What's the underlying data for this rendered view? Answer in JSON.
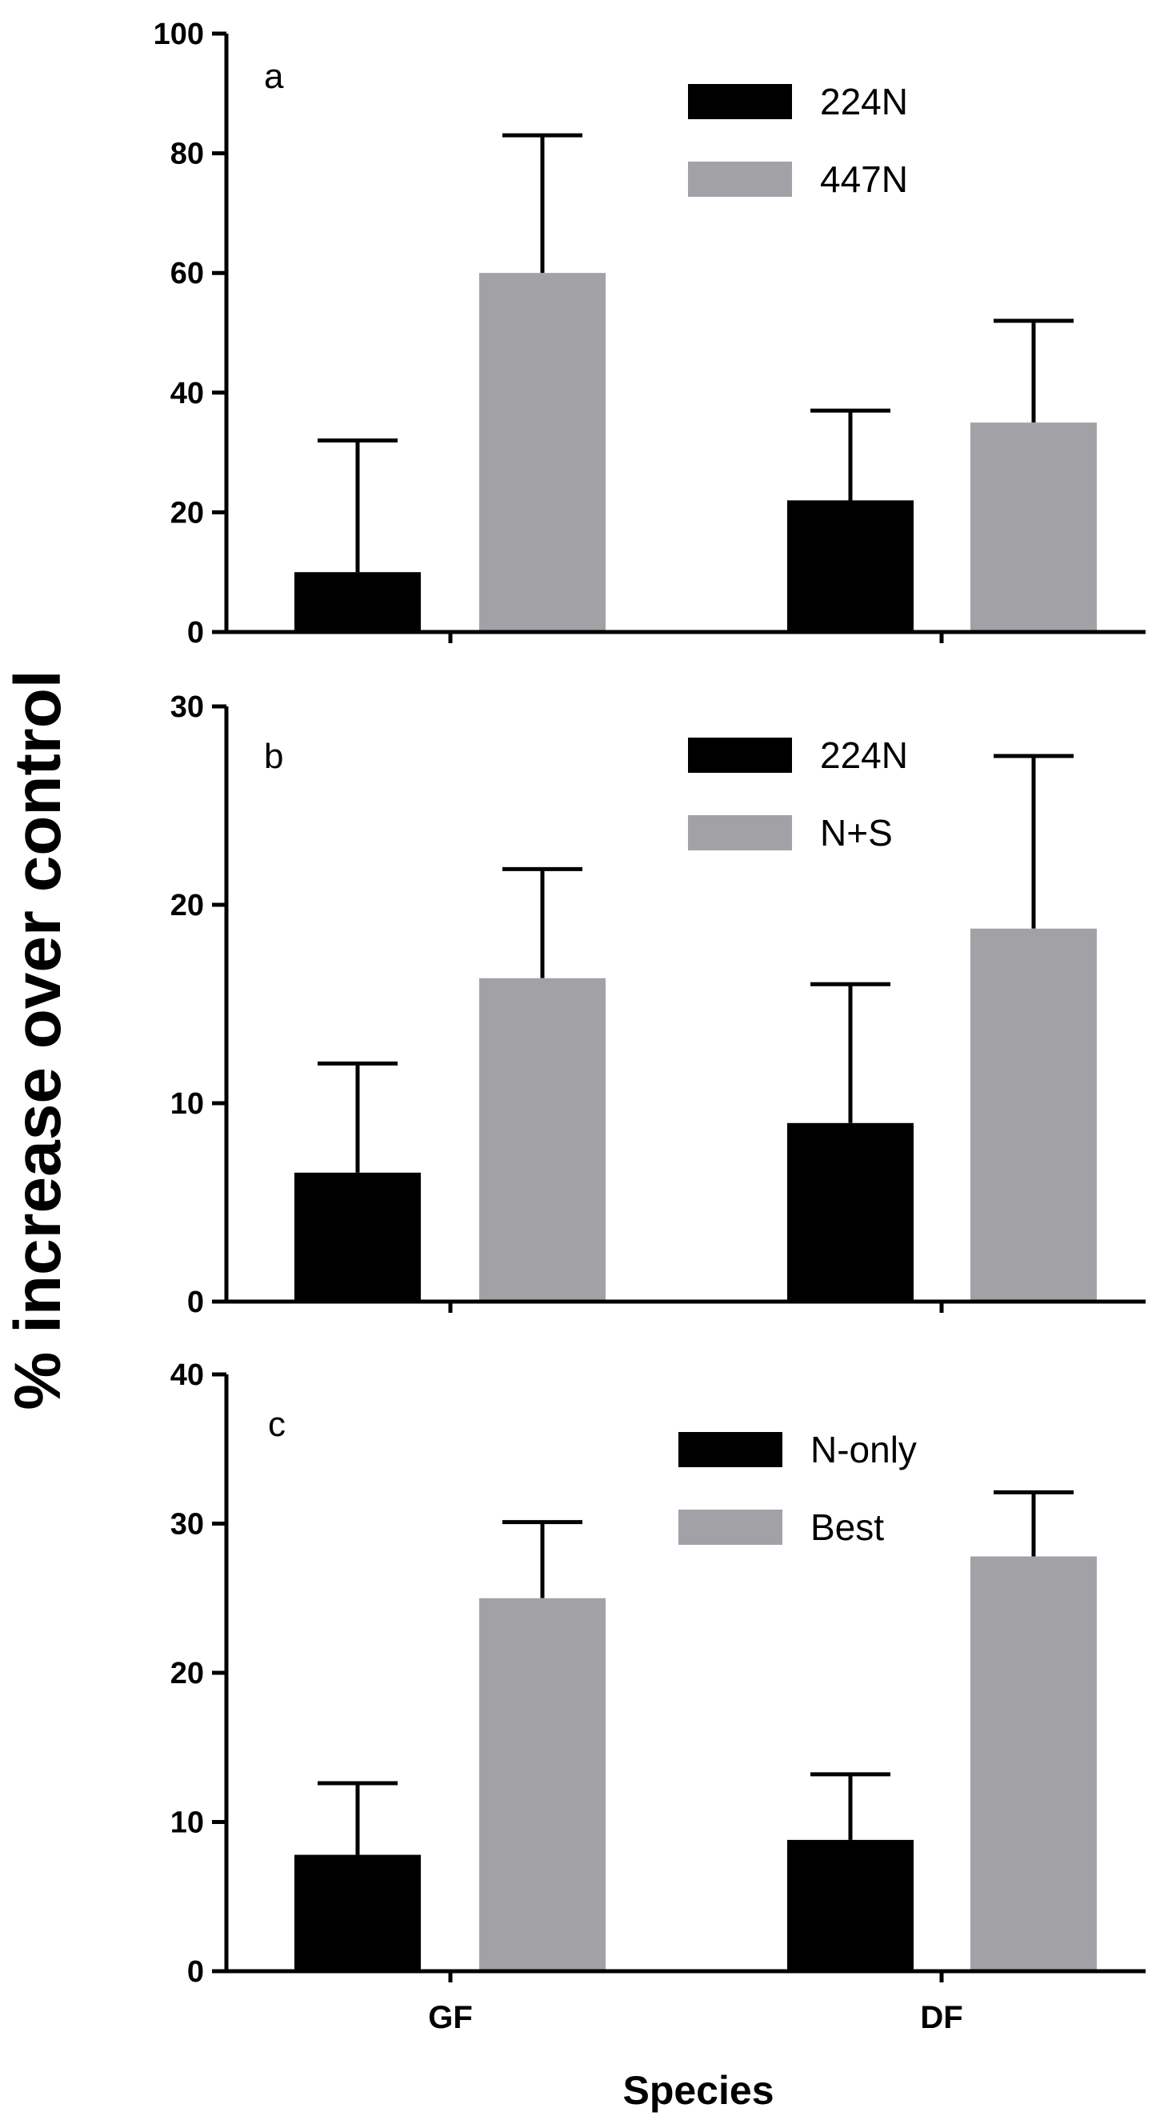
{
  "chart_data": {
    "type": "bar",
    "ylabel": "% increase over control",
    "xlabel": "Species",
    "categories": [
      "GF",
      "DF"
    ],
    "colors": {
      "dark": "#000000",
      "light": "#a2a1a6"
    },
    "panels": [
      {
        "label": "a",
        "ylim": [
          0,
          100
        ],
        "yticks": [
          0,
          20,
          40,
          60,
          80,
          100
        ],
        "yticks_text": [
          "0",
          "20",
          "40",
          "60",
          "80",
          "100"
        ],
        "series": [
          {
            "name": "224N",
            "values": [
              10,
              22
            ],
            "errors": [
              22,
              15
            ]
          },
          {
            "name": "447N",
            "values": [
              60,
              35
            ],
            "errors": [
              23,
              17
            ]
          }
        ]
      },
      {
        "label": "b",
        "ylim": [
          0,
          30
        ],
        "yticks": [
          0,
          10,
          20,
          30
        ],
        "yticks_text": [
          "0",
          "10",
          "20",
          "30"
        ],
        "series": [
          {
            "name": "224N",
            "values": [
              6.5,
              9
            ],
            "errors": [
              5.5,
              7
            ]
          },
          {
            "name": "N+S",
            "values": [
              16.3,
              18.8
            ],
            "errors": [
              5.5,
              8.7
            ]
          }
        ]
      },
      {
        "label": "c",
        "ylim": [
          0,
          40
        ],
        "yticks": [
          0,
          10,
          20,
          30,
          40
        ],
        "yticks_text": [
          "0",
          "10",
          "20",
          "30",
          "40"
        ],
        "series": [
          {
            "name": "N-only",
            "values": [
              7.8,
              8.8
            ],
            "errors": [
              4.8,
              4.4
            ]
          },
          {
            "name": "Best",
            "values": [
              25,
              27.8
            ],
            "errors": [
              5.1,
              4.3
            ]
          }
        ]
      }
    ]
  }
}
